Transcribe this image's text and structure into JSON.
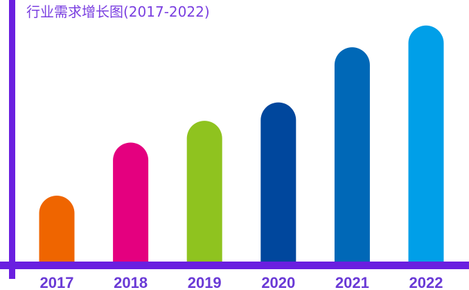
{
  "chart_data": {
    "type": "bar",
    "title": "行业需求增长图(2017-2022)",
    "categories": [
      "2017",
      "2018",
      "2019",
      "2020",
      "2021",
      "2022"
    ],
    "values": [
      100,
      178,
      210,
      237,
      318,
      350
    ],
    "bar_colors": [
      "#ef6500",
      "#e4007f",
      "#8fc31f",
      "#00479d",
      "#0068b7",
      "#009fe8"
    ],
    "axis_color": "#6a1fe0",
    "title_color": "#7a3fe0",
    "label_color": "#6a3ad6",
    "ylim": [
      0,
      360
    ],
    "grid": false,
    "legend": "none"
  }
}
